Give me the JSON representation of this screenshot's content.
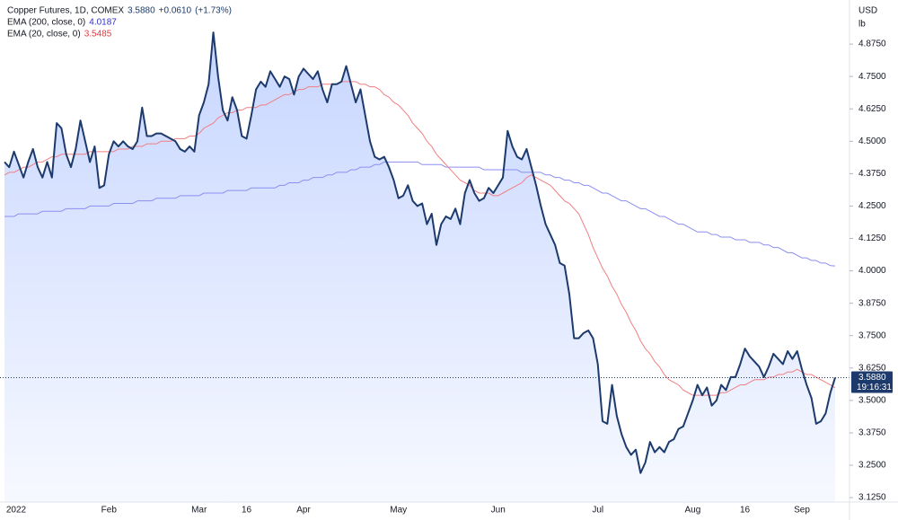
{
  "chart_data": {
    "type": "line",
    "ylabel_lines": [
      "USD",
      "lb"
    ],
    "categories": [
      "2022",
      null,
      null,
      null,
      null,
      null,
      null,
      null,
      null,
      null,
      null,
      null,
      null,
      null,
      null,
      null,
      null,
      null,
      null,
      null,
      null,
      null,
      "Feb",
      null,
      null,
      null,
      null,
      null,
      null,
      null,
      null,
      null,
      null,
      null,
      null,
      null,
      null,
      null,
      null,
      null,
      null,
      "Mar",
      null,
      null,
      null,
      null,
      null,
      null,
      null,
      null,
      null,
      "16",
      null,
      null,
      null,
      null,
      null,
      null,
      null,
      null,
      null,
      null,
      null,
      "Apr",
      null,
      null,
      null,
      null,
      null,
      null,
      null,
      null,
      null,
      null,
      null,
      null,
      null,
      null,
      null,
      null,
      null,
      null,
      null,
      "May",
      null,
      null,
      null,
      null,
      null,
      null,
      null,
      null,
      null,
      null,
      null,
      null,
      null,
      null,
      null,
      null,
      null,
      null,
      null,
      null,
      "Jun",
      null,
      null,
      null,
      null,
      null,
      null,
      null,
      null,
      null,
      null,
      null,
      null,
      null,
      null,
      null,
      null,
      null,
      null,
      null,
      null,
      "Jul",
      null,
      null,
      null,
      null,
      null,
      null,
      null,
      null,
      null,
      null,
      null,
      null,
      null,
      null,
      null,
      null,
      null,
      null,
      null,
      "Aug",
      null,
      null,
      null,
      null,
      null,
      null,
      null,
      null,
      null,
      null,
      "16",
      null,
      null,
      null,
      null,
      null,
      null,
      null,
      null,
      null,
      null,
      null,
      "Sep",
      null,
      null,
      null,
      null,
      null,
      null,
      null
    ],
    "series": [
      {
        "name": "Copper Futures, 1D, COMEX",
        "color": "#1c3a6b",
        "last_label": "3.5880",
        "change": "+0.0610",
        "change_pct": "(+1.73%)",
        "countdown": "19:16:31",
        "values": [
          4.42,
          4.4,
          4.46,
          4.41,
          4.36,
          4.42,
          4.47,
          4.4,
          4.36,
          4.42,
          4.36,
          4.57,
          4.55,
          4.45,
          4.4,
          4.47,
          4.58,
          4.5,
          4.42,
          4.48,
          4.32,
          4.33,
          4.45,
          4.5,
          4.48,
          4.5,
          4.48,
          4.47,
          4.5,
          4.63,
          4.52,
          4.52,
          4.53,
          4.53,
          4.52,
          4.51,
          4.5,
          4.47,
          4.46,
          4.48,
          4.46,
          4.6,
          4.65,
          4.72,
          4.92,
          4.75,
          4.62,
          4.58,
          4.67,
          4.62,
          4.52,
          4.51,
          4.6,
          4.7,
          4.73,
          4.71,
          4.77,
          4.74,
          4.71,
          4.75,
          4.74,
          4.68,
          4.75,
          4.78,
          4.76,
          4.74,
          4.77,
          4.7,
          4.65,
          4.72,
          4.72,
          4.73,
          4.79,
          4.72,
          4.65,
          4.7,
          4.6,
          4.5,
          4.44,
          4.43,
          4.44,
          4.4,
          4.35,
          4.28,
          4.29,
          4.33,
          4.27,
          4.25,
          4.26,
          4.18,
          4.22,
          4.1,
          4.18,
          4.21,
          4.2,
          4.24,
          4.18,
          4.3,
          4.35,
          4.3,
          4.27,
          4.28,
          4.32,
          4.3,
          4.33,
          4.36,
          4.54,
          4.48,
          4.44,
          4.43,
          4.47,
          4.4,
          4.33,
          4.25,
          4.18,
          4.14,
          4.1,
          4.03,
          4.02,
          3.91,
          3.74,
          3.74,
          3.76,
          3.77,
          3.74,
          3.64,
          3.42,
          3.41,
          3.56,
          3.44,
          3.37,
          3.32,
          3.29,
          3.31,
          3.22,
          3.26,
          3.34,
          3.3,
          3.32,
          3.3,
          3.34,
          3.35,
          3.39,
          3.4,
          3.45,
          3.5,
          3.56,
          3.52,
          3.55,
          3.48,
          3.5,
          3.56,
          3.54,
          3.59,
          3.59,
          3.64,
          3.7,
          3.67,
          3.65,
          3.63,
          3.59,
          3.63,
          3.68,
          3.66,
          3.64,
          3.69,
          3.66,
          3.69,
          3.62,
          3.56,
          3.51,
          3.41,
          3.42,
          3.45,
          3.53,
          3.588
        ]
      },
      {
        "name": "EMA (200, close, 0)",
        "color": "#8c8ff0",
        "last_label": "4.0187",
        "values": [
          4.21,
          4.21,
          4.21,
          4.22,
          4.22,
          4.22,
          4.22,
          4.22,
          4.23,
          4.23,
          4.23,
          4.23,
          4.23,
          4.24,
          4.24,
          4.24,
          4.24,
          4.24,
          4.25,
          4.25,
          4.25,
          4.25,
          4.25,
          4.26,
          4.26,
          4.26,
          4.26,
          4.26,
          4.27,
          4.27,
          4.27,
          4.27,
          4.28,
          4.28,
          4.28,
          4.28,
          4.28,
          4.29,
          4.29,
          4.29,
          4.29,
          4.29,
          4.3,
          4.3,
          4.3,
          4.3,
          4.3,
          4.31,
          4.31,
          4.31,
          4.31,
          4.31,
          4.32,
          4.32,
          4.32,
          4.32,
          4.32,
          4.32,
          4.33,
          4.33,
          4.34,
          4.34,
          4.34,
          4.35,
          4.35,
          4.36,
          4.36,
          4.36,
          4.37,
          4.37,
          4.38,
          4.38,
          4.38,
          4.39,
          4.39,
          4.4,
          4.4,
          4.4,
          4.41,
          4.41,
          4.42,
          4.42,
          4.42,
          4.42,
          4.42,
          4.42,
          4.42,
          4.42,
          4.41,
          4.41,
          4.41,
          4.41,
          4.41,
          4.4,
          4.4,
          4.4,
          4.4,
          4.4,
          4.4,
          4.4,
          4.4,
          4.39,
          4.39,
          4.39,
          4.39,
          4.39,
          4.39,
          4.39,
          4.39,
          4.38,
          4.38,
          4.38,
          4.38,
          4.38,
          4.37,
          4.37,
          4.36,
          4.36,
          4.35,
          4.35,
          4.34,
          4.34,
          4.33,
          4.33,
          4.32,
          4.31,
          4.3,
          4.3,
          4.29,
          4.28,
          4.27,
          4.27,
          4.26,
          4.25,
          4.24,
          4.24,
          4.23,
          4.22,
          4.21,
          4.21,
          4.2,
          4.19,
          4.18,
          4.18,
          4.17,
          4.16,
          4.15,
          4.15,
          4.15,
          4.14,
          4.14,
          4.13,
          4.13,
          4.13,
          4.12,
          4.12,
          4.12,
          4.11,
          4.11,
          4.11,
          4.1,
          4.1,
          4.09,
          4.09,
          4.08,
          4.07,
          4.07,
          4.06,
          4.05,
          4.05,
          4.04,
          4.04,
          4.03,
          4.03,
          4.02,
          4.0187
        ]
      },
      {
        "name": "EMA (20, close, 0)",
        "color": "#f07f82",
        "last_label": "3.5485",
        "values": [
          4.37,
          4.38,
          4.38,
          4.39,
          4.4,
          4.4,
          4.41,
          4.42,
          4.42,
          4.43,
          4.44,
          4.44,
          4.45,
          4.45,
          4.45,
          4.45,
          4.45,
          4.45,
          4.46,
          4.46,
          4.46,
          4.46,
          4.46,
          4.46,
          4.47,
          4.47,
          4.47,
          4.48,
          4.48,
          4.48,
          4.49,
          4.49,
          4.49,
          4.5,
          4.5,
          4.5,
          4.51,
          4.51,
          4.51,
          4.52,
          4.52,
          4.53,
          4.55,
          4.56,
          4.57,
          4.59,
          4.6,
          4.61,
          4.61,
          4.62,
          4.62,
          4.63,
          4.63,
          4.63,
          4.64,
          4.64,
          4.65,
          4.66,
          4.67,
          4.68,
          4.68,
          4.69,
          4.7,
          4.7,
          4.71,
          4.71,
          4.71,
          4.72,
          4.72,
          4.72,
          4.72,
          4.73,
          4.73,
          4.73,
          4.73,
          4.72,
          4.72,
          4.71,
          4.71,
          4.7,
          4.68,
          4.67,
          4.65,
          4.64,
          4.62,
          4.6,
          4.57,
          4.55,
          4.53,
          4.5,
          4.48,
          4.45,
          4.43,
          4.41,
          4.39,
          4.37,
          4.35,
          4.34,
          4.33,
          4.31,
          4.3,
          4.3,
          4.3,
          4.29,
          4.29,
          4.3,
          4.31,
          4.32,
          4.33,
          4.34,
          4.36,
          4.37,
          4.36,
          4.35,
          4.34,
          4.33,
          4.31,
          4.29,
          4.27,
          4.26,
          4.24,
          4.22,
          4.18,
          4.14,
          4.09,
          4.05,
          4.01,
          3.98,
          3.94,
          3.91,
          3.87,
          3.84,
          3.8,
          3.77,
          3.73,
          3.7,
          3.68,
          3.65,
          3.63,
          3.6,
          3.58,
          3.57,
          3.56,
          3.54,
          3.53,
          3.52,
          3.52,
          3.52,
          3.52,
          3.52,
          3.52,
          3.53,
          3.53,
          3.54,
          3.55,
          3.56,
          3.56,
          3.57,
          3.58,
          3.58,
          3.58,
          3.59,
          3.59,
          3.6,
          3.6,
          3.61,
          3.61,
          3.62,
          3.61,
          3.6,
          3.6,
          3.59,
          3.58,
          3.57,
          3.56,
          3.5485
        ]
      }
    ],
    "ylim": [
      3.108,
      5.045
    ],
    "yticks": [
      {
        "value": 3.125,
        "label": "3.1250"
      },
      {
        "value": 3.25,
        "label": "3.2500"
      },
      {
        "value": 3.375,
        "label": "3.3750"
      },
      {
        "value": 3.5,
        "label": "3.5000"
      },
      {
        "value": 3.625,
        "label": "3.6250"
      },
      {
        "value": 3.75,
        "label": "3.7500"
      },
      {
        "value": 3.875,
        "label": "3.8750"
      },
      {
        "value": 4.0,
        "label": "4.0000"
      },
      {
        "value": 4.125,
        "label": "4.1250"
      },
      {
        "value": 4.25,
        "label": "4.2500"
      },
      {
        "value": 4.375,
        "label": "4.3750"
      },
      {
        "value": 4.5,
        "label": "4.5000"
      },
      {
        "value": 4.625,
        "label": "4.6250"
      },
      {
        "value": 4.75,
        "label": "4.7500"
      },
      {
        "value": 4.875,
        "label": "4.8750"
      }
    ],
    "grid": false
  }
}
